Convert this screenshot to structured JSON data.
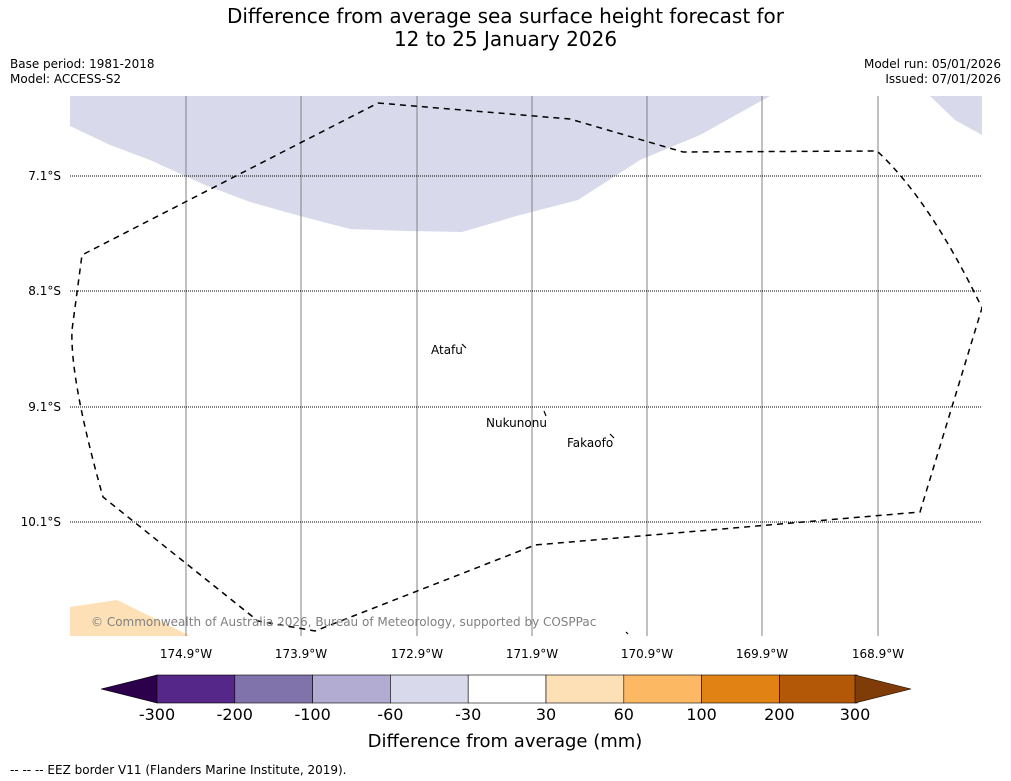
{
  "title": {
    "line1": "Difference from average sea surface height forecast for",
    "line2": "12 to 25 January 2026"
  },
  "meta": {
    "base_period": "Base period: 1981-2018",
    "model": "Model: ACCESS-S2",
    "model_run": "Model run: 05/01/2026",
    "issued": "Issued: 07/01/2026"
  },
  "map": {
    "lat_labels": [
      "7.1°S",
      "8.1°S",
      "9.1°S",
      "10.1°S"
    ],
    "lon_labels": [
      "174.9°W",
      "173.9°W",
      "172.9°W",
      "171.9°W",
      "170.9°W",
      "169.9°W",
      "168.9°W"
    ],
    "places": [
      "Atafu",
      "Nukunonu",
      "Fakaofo"
    ],
    "copyright": "© Commonwealth of Australia 2026, Bureau of Meteorology, supported by COSPPac"
  },
  "colorbar": {
    "title": "Difference from average (mm)",
    "ticks": [
      "-300",
      "-200",
      "-100",
      "-60",
      "-30",
      "30",
      "60",
      "100",
      "200",
      "300"
    ],
    "colors": [
      "#2d004b",
      "#542788",
      "#8073ac",
      "#b2abd2",
      "#d8daeb",
      "#ffffff",
      "#fee0b6",
      "#fdb863",
      "#e08214",
      "#b35806",
      "#7f3b08"
    ]
  },
  "footer": "--  --  -- EEZ border V11 (Flanders Marine Institute, 2019)."
}
